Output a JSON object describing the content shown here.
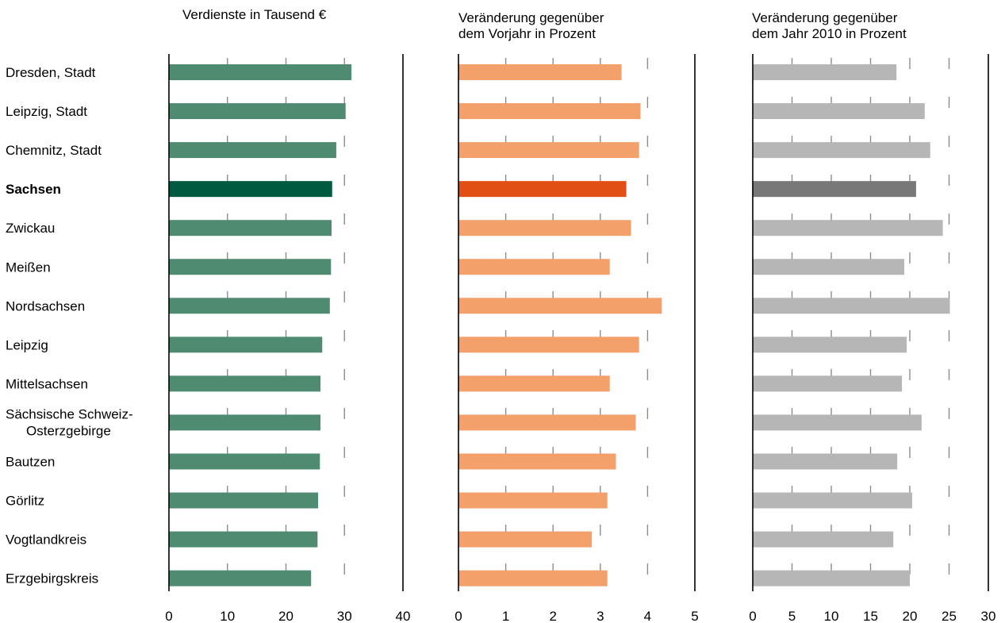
{
  "chart_data": {
    "type": "bar",
    "orientation": "horizontal",
    "categories": [
      "Dresden, Stadt",
      "Leipzig, Stadt",
      "Chemnitz, Stadt",
      "Sachsen",
      "Zwickau",
      "Meißen",
      "Nordsachsen",
      "Leipzig",
      "Mittelsachsen",
      "Sächsische Schweiz-\nOsterzgebirge",
      "Bautzen",
      "Görlitz",
      "Vogtlandkreis",
      "Erzgebirgskreis"
    ],
    "highlight_category": "Sachsen",
    "panels": [
      {
        "title": "Verdienste in Tausend €",
        "values": [
          31.2,
          30.2,
          28.6,
          27.9,
          27.8,
          27.7,
          27.5,
          26.2,
          25.9,
          25.9,
          25.8,
          25.5,
          25.4,
          24.3
        ],
        "xlim": [
          0,
          40
        ],
        "ticks": [
          0,
          10,
          20,
          30,
          40
        ],
        "color": "#4e8b70",
        "highlight_color": "#005a3f",
        "grid": true
      },
      {
        "title": "Veränderung gegenüber\ndem Vorjahr in Prozent",
        "values": [
          3.45,
          3.85,
          3.82,
          3.55,
          3.65,
          3.2,
          4.3,
          3.82,
          3.2,
          3.75,
          3.33,
          3.15,
          2.82,
          3.15
        ],
        "xlim": [
          0,
          5
        ],
        "ticks": [
          0,
          1,
          2,
          3,
          4,
          5
        ],
        "color": "#f3a06b",
        "highlight_color": "#e24f14",
        "grid": true
      },
      {
        "title": "Veränderung gegenüber\ndem Jahr 2010 in Prozent",
        "values": [
          18.3,
          21.9,
          22.6,
          20.8,
          24.2,
          19.3,
          25.1,
          19.6,
          19.0,
          21.5,
          18.4,
          20.3,
          17.9,
          20.0
        ],
        "xlim": [
          0,
          30
        ],
        "ticks": [
          0,
          5,
          10,
          15,
          20,
          25,
          30
        ],
        "color": "#b6b6b6",
        "highlight_color": "#787878",
        "grid": true
      }
    ]
  }
}
